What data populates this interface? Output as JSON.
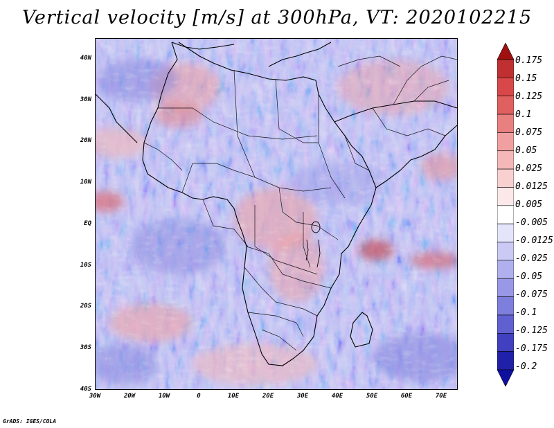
{
  "title": "Vertical velocity [m/s] at 300hPa, VT: 2020102215",
  "credit": "GrADS: IGES/COLA",
  "latitude_labels": [
    "40N",
    "30N",
    "20N",
    "10N",
    "EQ",
    "10S",
    "20S",
    "30S",
    "40S"
  ],
  "longitude_labels": [
    "30W",
    "20W",
    "10W",
    "0",
    "10E",
    "20E",
    "30E",
    "40E",
    "50E",
    "60E",
    "70E"
  ],
  "colorbar": {
    "units": "m/s",
    "levels": [
      "0.175",
      "0.15",
      "0.125",
      "0.1",
      "0.075",
      "0.05",
      "0.025",
      "0.0125",
      "0.005",
      "-0.005",
      "-0.0125",
      "-0.025",
      "-0.05",
      "-0.075",
      "-0.1",
      "-0.125",
      "-0.175",
      "-0.2"
    ],
    "colors": [
      "#a01010",
      "#c03030",
      "#d84848",
      "#e06060",
      "#e88080",
      "#f0a0a0",
      "#f4b8b8",
      "#f8d0d0",
      "#fce8e8",
      "#ffffff",
      "#e4e4fa",
      "#cacaf4",
      "#b0b0ee",
      "#9898e6",
      "#7e7edc",
      "#6060d0",
      "#4040c0",
      "#2020a8",
      "#1010a0"
    ]
  }
}
